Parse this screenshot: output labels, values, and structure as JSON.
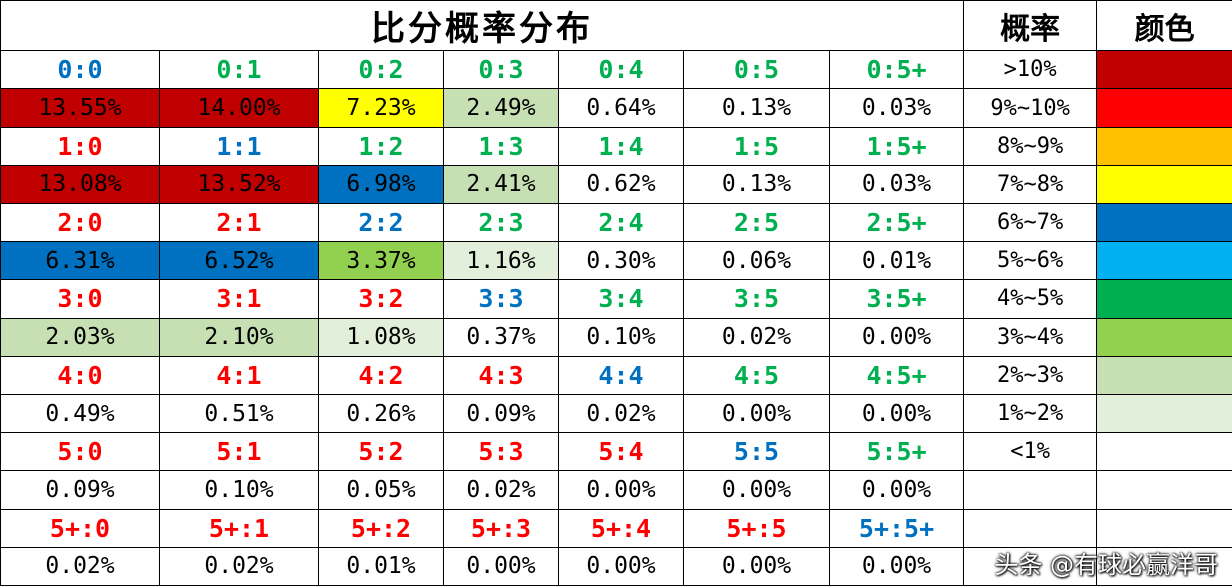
{
  "title": "比分概率分布",
  "legend_header": "概率",
  "color_header": "颜色",
  "scores": [
    [
      "0:0",
      "0:1",
      "0:2",
      "0:3",
      "0:4",
      "0:5",
      "0:5+"
    ],
    [
      "1:0",
      "1:1",
      "1:2",
      "1:3",
      "1:4",
      "1:5",
      "1:5+"
    ],
    [
      "2:0",
      "2:1",
      "2:2",
      "2:3",
      "2:4",
      "2:5",
      "2:5+"
    ],
    [
      "3:0",
      "3:1",
      "3:2",
      "3:3",
      "3:4",
      "3:5",
      "3:5+"
    ],
    [
      "4:0",
      "4:1",
      "4:2",
      "4:3",
      "4:4",
      "4:5",
      "4:5+"
    ],
    [
      "5:0",
      "5:1",
      "5:2",
      "5:3",
      "5:4",
      "5:5",
      "5:5+"
    ],
    [
      "5+:0",
      "5+:1",
      "5+:2",
      "5+:3",
      "5+:4",
      "5+:5",
      "5+:5+"
    ]
  ],
  "probabilities": [
    [
      "13.55%",
      "14.00%",
      "7.23%",
      "2.49%",
      "0.64%",
      "0.13%",
      "0.03%"
    ],
    [
      "13.08%",
      "13.52%",
      "6.98%",
      "2.41%",
      "0.62%",
      "0.13%",
      "0.03%"
    ],
    [
      "6.31%",
      "6.52%",
      "3.37%",
      "1.16%",
      "0.30%",
      "0.06%",
      "0.01%"
    ],
    [
      "2.03%",
      "2.10%",
      "1.08%",
      "0.37%",
      "0.10%",
      "0.02%",
      "0.00%"
    ],
    [
      "0.49%",
      "0.51%",
      "0.26%",
      "0.09%",
      "0.02%",
      "0.00%",
      "0.00%"
    ],
    [
      "0.09%",
      "0.10%",
      "0.05%",
      "0.02%",
      "0.00%",
      "0.00%",
      "0.00%"
    ],
    [
      "0.02%",
      "0.02%",
      "0.01%",
      "0.00%",
      "0.00%",
      "0.00%",
      "0.00%"
    ]
  ],
  "legend": [
    {
      "range": ">10%",
      "color": "#c00000"
    },
    {
      "range": "9%~10%",
      "color": "#ff0000"
    },
    {
      "range": "8%~9%",
      "color": "#ffc000"
    },
    {
      "range": "7%~8%",
      "color": "#ffff00"
    },
    {
      "range": "6%~7%",
      "color": "#0070c0"
    },
    {
      "range": "5%~6%",
      "color": "#00b0f0"
    },
    {
      "range": "4%~5%",
      "color": "#00b050"
    },
    {
      "range": "3%~4%",
      "color": "#92d050"
    },
    {
      "range": "2%~3%",
      "color": "#c6e0b4"
    },
    {
      "range": "1%~2%",
      "color": "#e2efda"
    },
    {
      "range": "<1%",
      "color": "#ffffff"
    }
  ],
  "score_colors": {
    "home_win": "#ff0000",
    "draw": "#0070c0",
    "away_win": "#00b050"
  },
  "watermark": "头条 @有球必赢洋哥"
}
